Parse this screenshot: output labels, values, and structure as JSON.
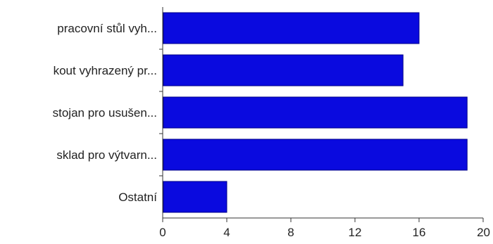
{
  "chart_data": {
    "type": "bar",
    "orientation": "horizontal",
    "title": "",
    "xlabel": "",
    "ylabel": "",
    "categories": [
      "pracovní stůl vyh...",
      "kout vyhrazený pr...",
      "stojan pro usušen...",
      "sklad pro výtvarn...",
      "Ostatní"
    ],
    "values": [
      16,
      15,
      19,
      19,
      4
    ],
    "xlim": [
      0,
      20
    ],
    "x_ticks": [
      "0",
      "4",
      "8",
      "12",
      "16",
      "20"
    ],
    "grid": false,
    "legend": "none",
    "colors": {
      "bar": "#0a0adf",
      "bar_stroke": "#00008a",
      "axis": "#333333",
      "text": "#222222"
    }
  }
}
